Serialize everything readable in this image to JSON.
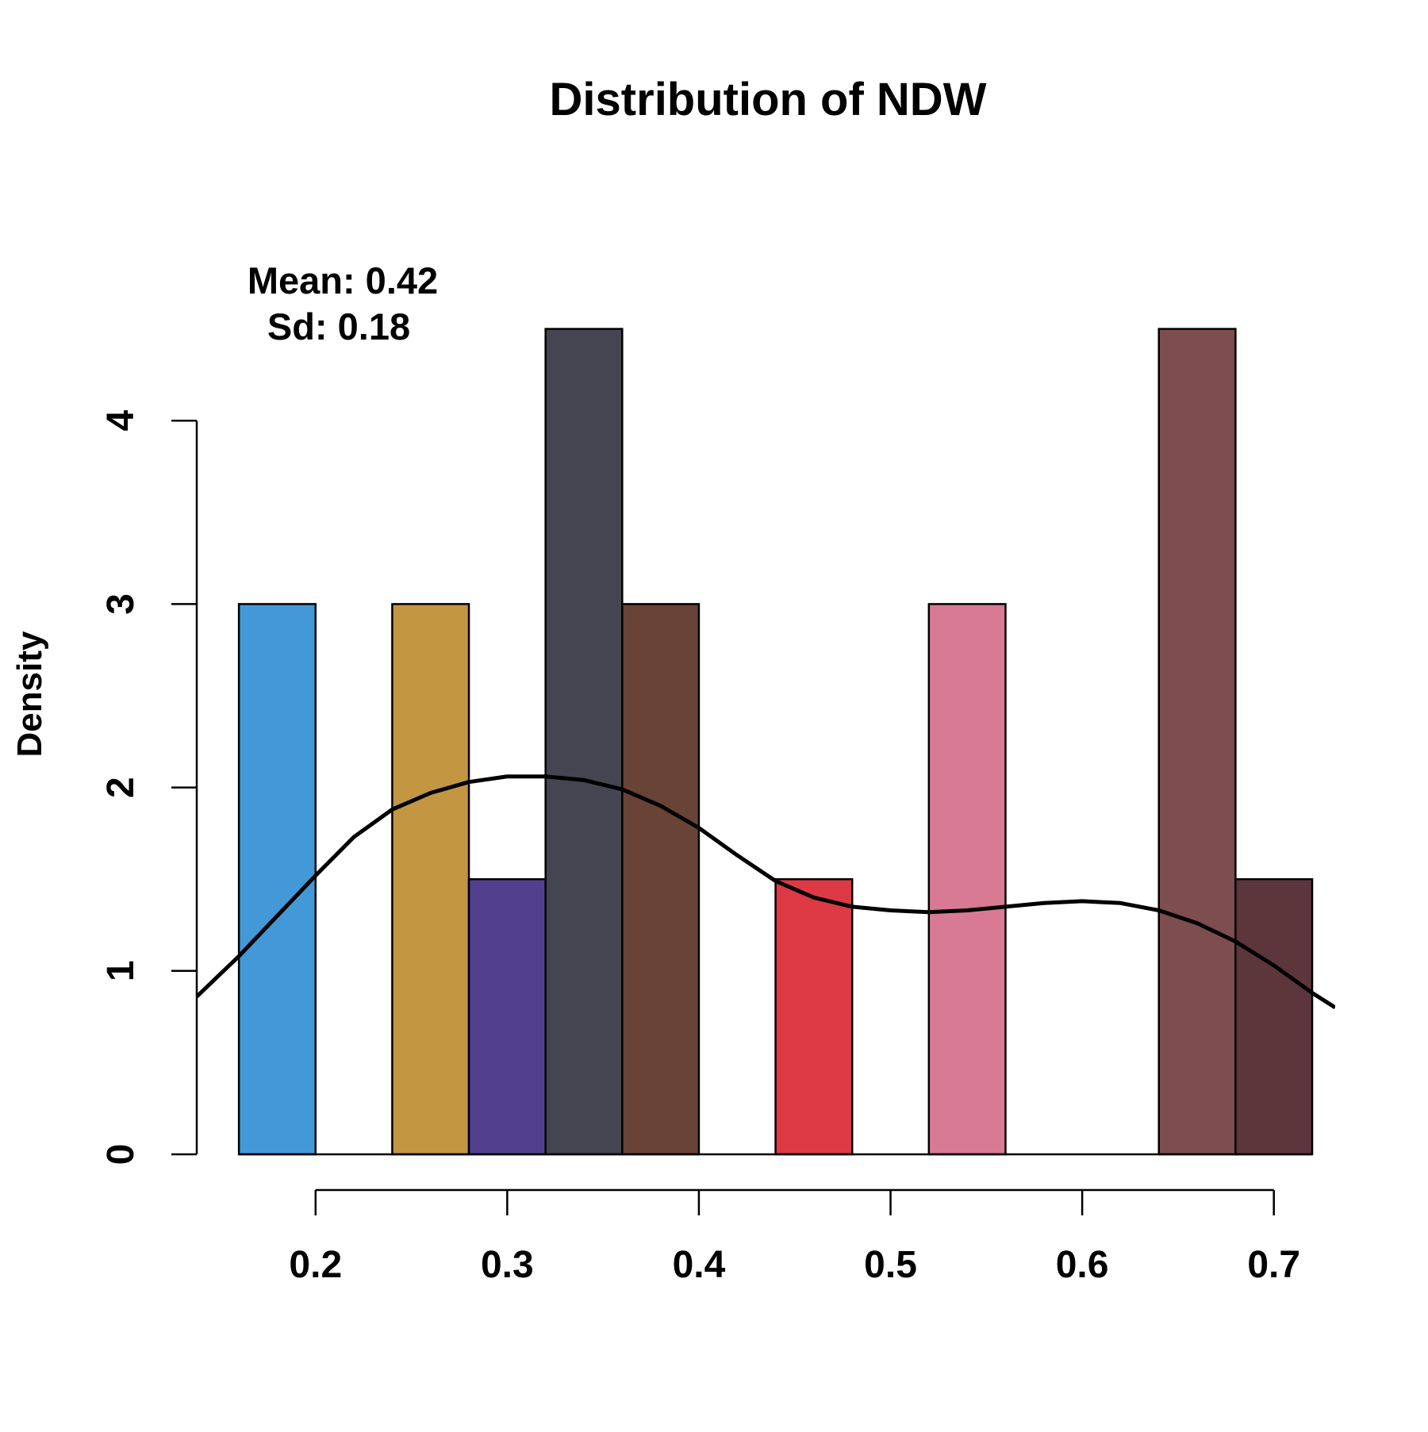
{
  "chart_data": {
    "type": "bar",
    "title": "Distribution of NDW",
    "xlabel": "",
    "ylabel": "Density",
    "xlim": [
      0.138,
      0.732
    ],
    "ylim": [
      0,
      5.32
    ],
    "x_ticks": [
      0.2,
      0.3,
      0.4,
      0.5,
      0.6,
      0.7
    ],
    "x_tick_labels": [
      "0.2",
      "0.3",
      "0.4",
      "0.5",
      "0.6",
      "0.7"
    ],
    "y_ticks": [
      0,
      1,
      2,
      3,
      4
    ],
    "y_tick_labels": [
      "0",
      "1",
      "2",
      "3",
      "4"
    ],
    "bins": [
      {
        "x0": 0.16,
        "x1": 0.2,
        "density": 3.0,
        "color": "#4398D8"
      },
      {
        "x0": 0.24,
        "x1": 0.28,
        "density": 3.0,
        "color": "#C39642"
      },
      {
        "x0": 0.28,
        "x1": 0.32,
        "density": 1.5,
        "color": "#52408E"
      },
      {
        "x0": 0.32,
        "x1": 0.36,
        "density": 4.5,
        "color": "#454552"
      },
      {
        "x0": 0.36,
        "x1": 0.4,
        "density": 3.0,
        "color": "#694336"
      },
      {
        "x0": 0.44,
        "x1": 0.48,
        "density": 1.5,
        "color": "#DD3A46"
      },
      {
        "x0": 0.52,
        "x1": 0.56,
        "density": 3.0,
        "color": "#D87A93"
      },
      {
        "x0": 0.64,
        "x1": 0.68,
        "density": 4.5,
        "color": "#7E4D4F"
      },
      {
        "x0": 0.68,
        "x1": 0.72,
        "density": 1.5,
        "color": "#5D363C"
      }
    ],
    "density_curve": {
      "color": "#000000",
      "points": [
        [
          0.138,
          0.86
        ],
        [
          0.16,
          1.08
        ],
        [
          0.18,
          1.3
        ],
        [
          0.2,
          1.52
        ],
        [
          0.22,
          1.73
        ],
        [
          0.24,
          1.88
        ],
        [
          0.26,
          1.97
        ],
        [
          0.28,
          2.03
        ],
        [
          0.3,
          2.06
        ],
        [
          0.32,
          2.06
        ],
        [
          0.34,
          2.04
        ],
        [
          0.36,
          1.99
        ],
        [
          0.38,
          1.9
        ],
        [
          0.4,
          1.78
        ],
        [
          0.42,
          1.63
        ],
        [
          0.44,
          1.49
        ],
        [
          0.46,
          1.4
        ],
        [
          0.48,
          1.35
        ],
        [
          0.5,
          1.33
        ],
        [
          0.52,
          1.32
        ],
        [
          0.54,
          1.33
        ],
        [
          0.56,
          1.35
        ],
        [
          0.58,
          1.37
        ],
        [
          0.6,
          1.38
        ],
        [
          0.62,
          1.37
        ],
        [
          0.64,
          1.33
        ],
        [
          0.66,
          1.26
        ],
        [
          0.68,
          1.16
        ],
        [
          0.7,
          1.03
        ],
        [
          0.72,
          0.88
        ],
        [
          0.732,
          0.8
        ]
      ]
    },
    "annotations": {
      "mean_text": "Mean: 0.42",
      "sd_text": "Sd: 0.18"
    }
  }
}
